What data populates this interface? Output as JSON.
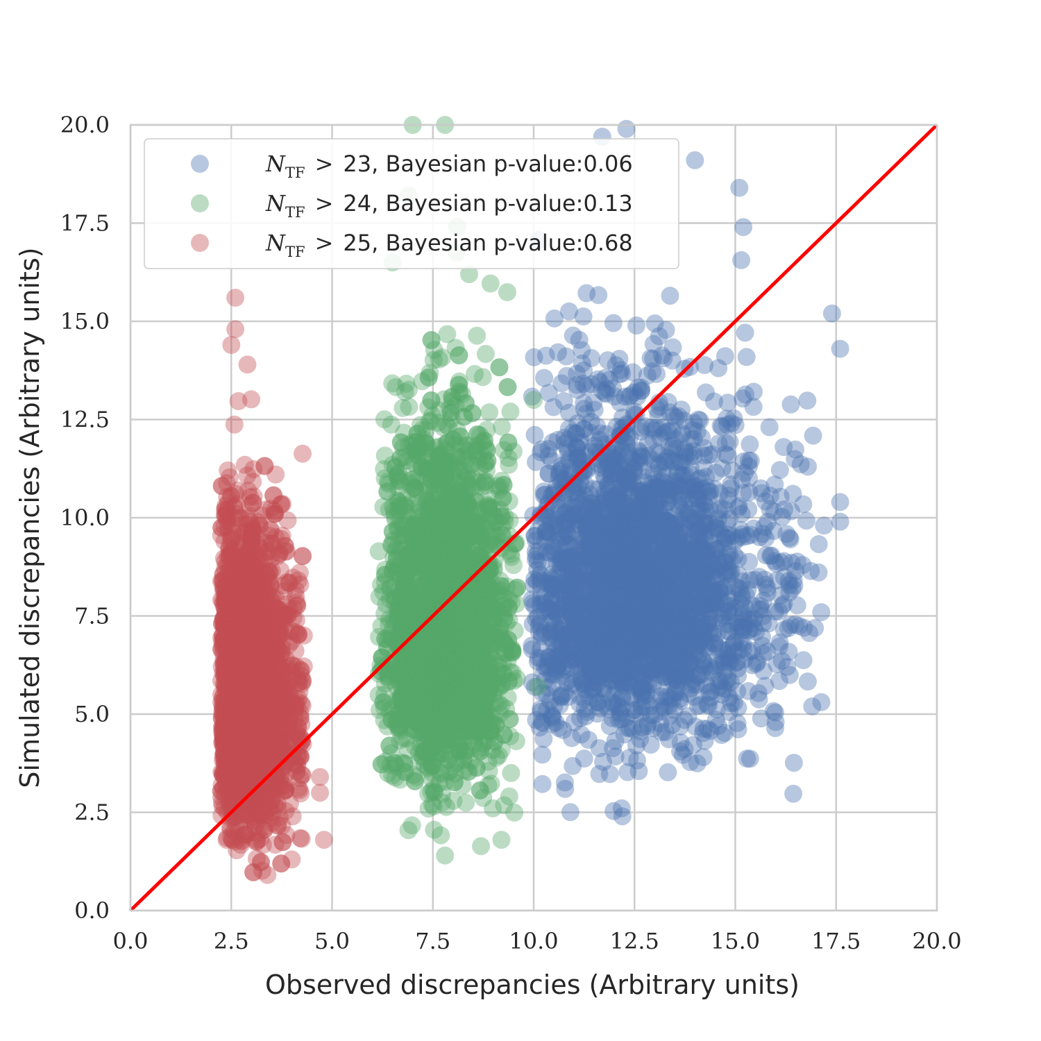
{
  "chart_data": {
    "type": "scatter",
    "xlabel": "Observed discrepancies (Arbitrary units)",
    "ylabel": "Simulated discrepancies (Arbitrary units)",
    "xlim": [
      0,
      20
    ],
    "ylim": [
      0,
      20
    ],
    "xticks": [
      "0.0",
      "2.5",
      "5.0",
      "7.5",
      "10.0",
      "12.5",
      "15.0",
      "17.5",
      "20.0"
    ],
    "yticks": [
      "0.0",
      "2.5",
      "5.0",
      "7.5",
      "10.0",
      "12.5",
      "15.0",
      "17.5",
      "20.0"
    ],
    "grid": true,
    "legend_position": "top-left",
    "reference_line": {
      "x": [
        0,
        20
      ],
      "y": [
        0,
        20
      ],
      "color": "#ff0000"
    },
    "series": [
      {
        "name": "N_TF > 23, Bayesian p-value:0.06",
        "legend_math": "N",
        "legend_sub": "TF",
        "legend_op": ">",
        "legend_rest": "23, Bayesian p-value:0.06",
        "color": "#4c72b0",
        "x_range": [
          9.8,
          17.8
        ],
        "y_range": [
          2.3,
          20.0
        ],
        "x_center": 12.5,
        "y_center": 7.5,
        "outliers": [
          [
            17.4,
            15.2
          ],
          [
            17.6,
            14.3
          ],
          [
            17.6,
            10.4
          ],
          [
            17.6,
            9.9
          ],
          [
            17.2,
            9.8
          ],
          [
            16.8,
            11.3
          ],
          [
            16.7,
            7.2
          ],
          [
            16.2,
            11.8
          ],
          [
            16.0,
            4.8
          ],
          [
            15.1,
            18.4
          ],
          [
            15.2,
            17.4
          ],
          [
            14.0,
            19.1
          ],
          [
            12.2,
            2.4
          ],
          [
            12.3,
            19.9
          ],
          [
            11.7,
            19.7
          ]
        ]
      },
      {
        "name": "N_TF > 24, Bayesian p-value:0.13",
        "legend_math": "N",
        "legend_sub": "TF",
        "legend_op": ">",
        "legend_rest": "24, Bayesian p-value:0.13",
        "color": "#55a868",
        "x_range": [
          6.0,
          10.2
        ],
        "y_range": [
          1.4,
          20.0
        ],
        "x_center": 7.8,
        "y_center": 6.5,
        "outliers": [
          [
            7.0,
            20.0
          ],
          [
            7.8,
            20.0
          ],
          [
            6.9,
            18.2
          ],
          [
            8.1,
            17.4
          ],
          [
            6.5,
            16.5
          ],
          [
            8.4,
            16.2
          ],
          [
            10.0,
            13.0
          ],
          [
            10.1,
            5.7
          ],
          [
            9.2,
            1.8
          ],
          [
            7.8,
            1.4
          ]
        ]
      },
      {
        "name": "N_TF > 25, Bayesian p-value:0.68",
        "legend_math": "N",
        "legend_sub": "TF",
        "legend_op": ">",
        "legend_rest": "25, Bayesian p-value:0.68",
        "color": "#c44e52",
        "x_range": [
          2.1,
          4.9
        ],
        "y_range": [
          0.7,
          15.6
        ],
        "x_center": 2.8,
        "y_center": 4.8,
        "outliers": [
          [
            2.6,
            15.6
          ],
          [
            2.6,
            14.8
          ],
          [
            2.5,
            14.4
          ],
          [
            2.9,
            13.9
          ],
          [
            3.6,
            11.1
          ],
          [
            3.6,
            9.5
          ],
          [
            4.2,
            8.6
          ],
          [
            4.1,
            8.0
          ],
          [
            4.3,
            7.0
          ],
          [
            4.8,
            1.8
          ],
          [
            4.0,
            1.3
          ],
          [
            4.7,
            3.4
          ],
          [
            4.7,
            3.0
          ]
        ]
      }
    ]
  }
}
